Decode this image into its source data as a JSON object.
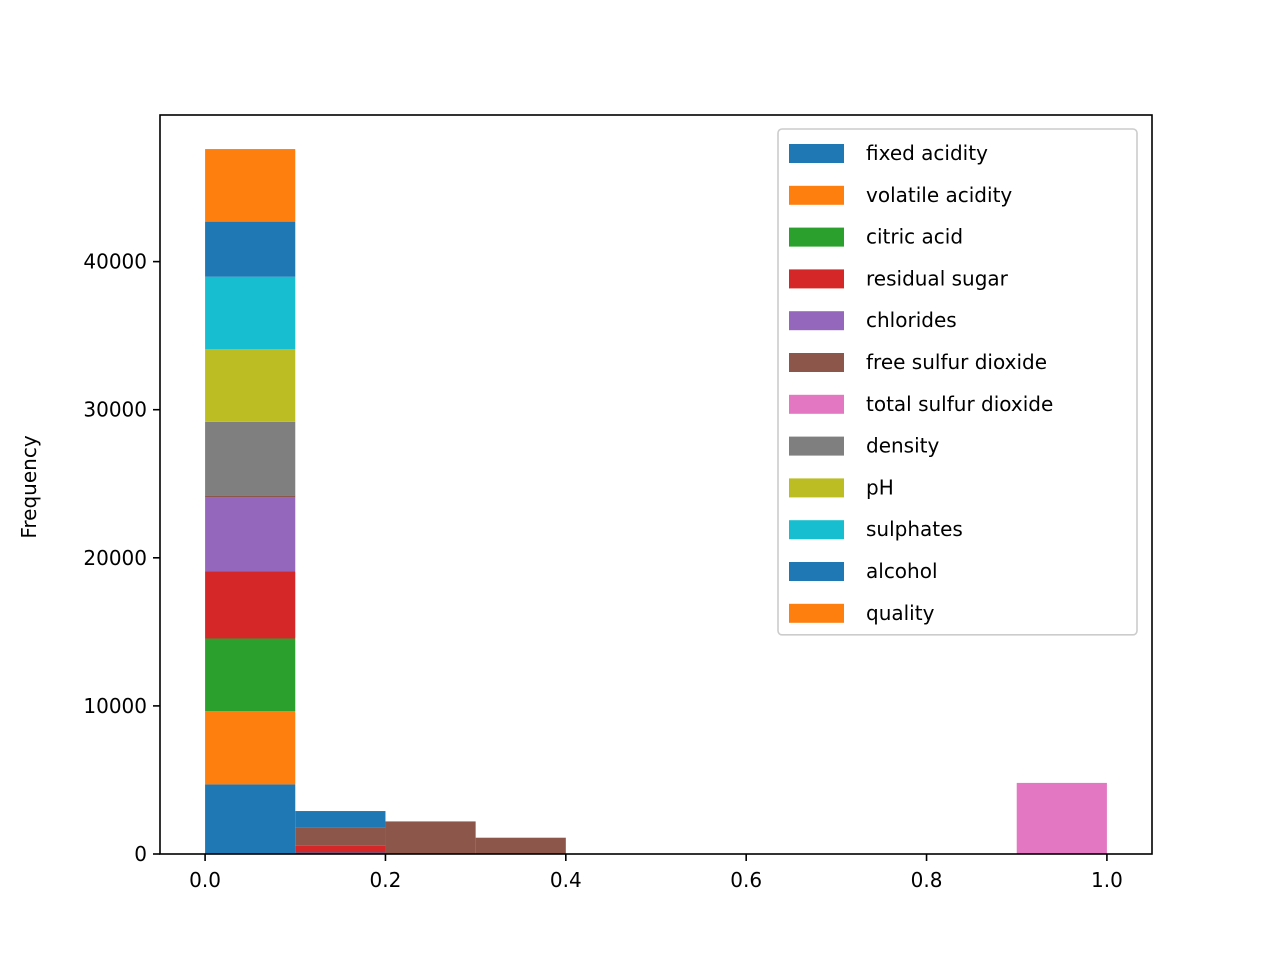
{
  "chart_data": {
    "type": "bar",
    "stacked": true,
    "histogram": true,
    "title": "",
    "xlabel": "",
    "ylabel": "Frequency",
    "xlim": [
      -0.05,
      1.05
    ],
    "ylim": [
      0,
      49900
    ],
    "xticks": [
      0.0,
      0.2,
      0.4,
      0.6,
      0.8,
      1.0
    ],
    "xtick_labels": [
      "0.0",
      "0.2",
      "0.4",
      "0.6",
      "0.8",
      "1.0"
    ],
    "yticks": [
      0,
      10000,
      20000,
      30000,
      40000
    ],
    "ytick_labels": [
      "0",
      "10000",
      "20000",
      "30000",
      "40000"
    ],
    "legend_position": "top-right",
    "grid": false,
    "bins": [
      [
        0.0,
        0.1
      ],
      [
        0.1,
        0.2
      ],
      [
        0.2,
        0.3
      ],
      [
        0.3,
        0.4
      ],
      [
        0.4,
        0.5
      ],
      [
        0.5,
        0.6
      ],
      [
        0.6,
        0.7
      ],
      [
        0.7,
        0.8
      ],
      [
        0.8,
        0.9
      ],
      [
        0.9,
        1.0
      ]
    ],
    "series": [
      {
        "name": "fixed acidity",
        "color": "#1f77b4",
        "values": [
          4700,
          100,
          0,
          0,
          0,
          0,
          0,
          0,
          0,
          0
        ]
      },
      {
        "name": "volatile acidity",
        "color": "#ff7f0e",
        "values": [
          4950,
          0,
          0,
          0,
          0,
          0,
          0,
          0,
          0,
          0
        ]
      },
      {
        "name": "citric acid",
        "color": "#2ca02c",
        "values": [
          4900,
          0,
          0,
          0,
          0,
          0,
          0,
          0,
          0,
          0
        ]
      },
      {
        "name": "residual sugar",
        "color": "#d62728",
        "values": [
          4550,
          450,
          0,
          0,
          0,
          0,
          0,
          0,
          0,
          0
        ]
      },
      {
        "name": "chlorides",
        "color": "#9467bd",
        "values": [
          4980,
          0,
          0,
          0,
          0,
          0,
          0,
          0,
          0,
          0
        ]
      },
      {
        "name": "free sulfur dioxide",
        "color": "#8c564b",
        "values": [
          120,
          1250,
          2200,
          1100,
          0,
          0,
          0,
          0,
          0,
          0
        ]
      },
      {
        "name": "total sulfur dioxide",
        "color": "#e377c2",
        "values": [
          0,
          0,
          0,
          0,
          0,
          0,
          0,
          0,
          0,
          4800
        ]
      },
      {
        "name": "density",
        "color": "#7f7f7f",
        "values": [
          4980,
          0,
          0,
          0,
          0,
          0,
          0,
          0,
          0,
          0
        ]
      },
      {
        "name": "pH",
        "color": "#bcbd22",
        "values": [
          4900,
          0,
          0,
          0,
          0,
          0,
          0,
          0,
          0,
          0
        ]
      },
      {
        "name": "sulphates",
        "color": "#17becf",
        "values": [
          4900,
          0,
          0,
          0,
          0,
          0,
          0,
          0,
          0,
          0
        ]
      },
      {
        "name": "alcohol",
        "color": "#1f77b4",
        "values": [
          3720,
          1100,
          0,
          0,
          0,
          0,
          0,
          0,
          0,
          0
        ]
      },
      {
        "name": "quality",
        "color": "#ff7f0e",
        "values": [
          4900,
          0,
          0,
          0,
          0,
          0,
          0,
          0,
          0,
          0
        ]
      }
    ]
  }
}
